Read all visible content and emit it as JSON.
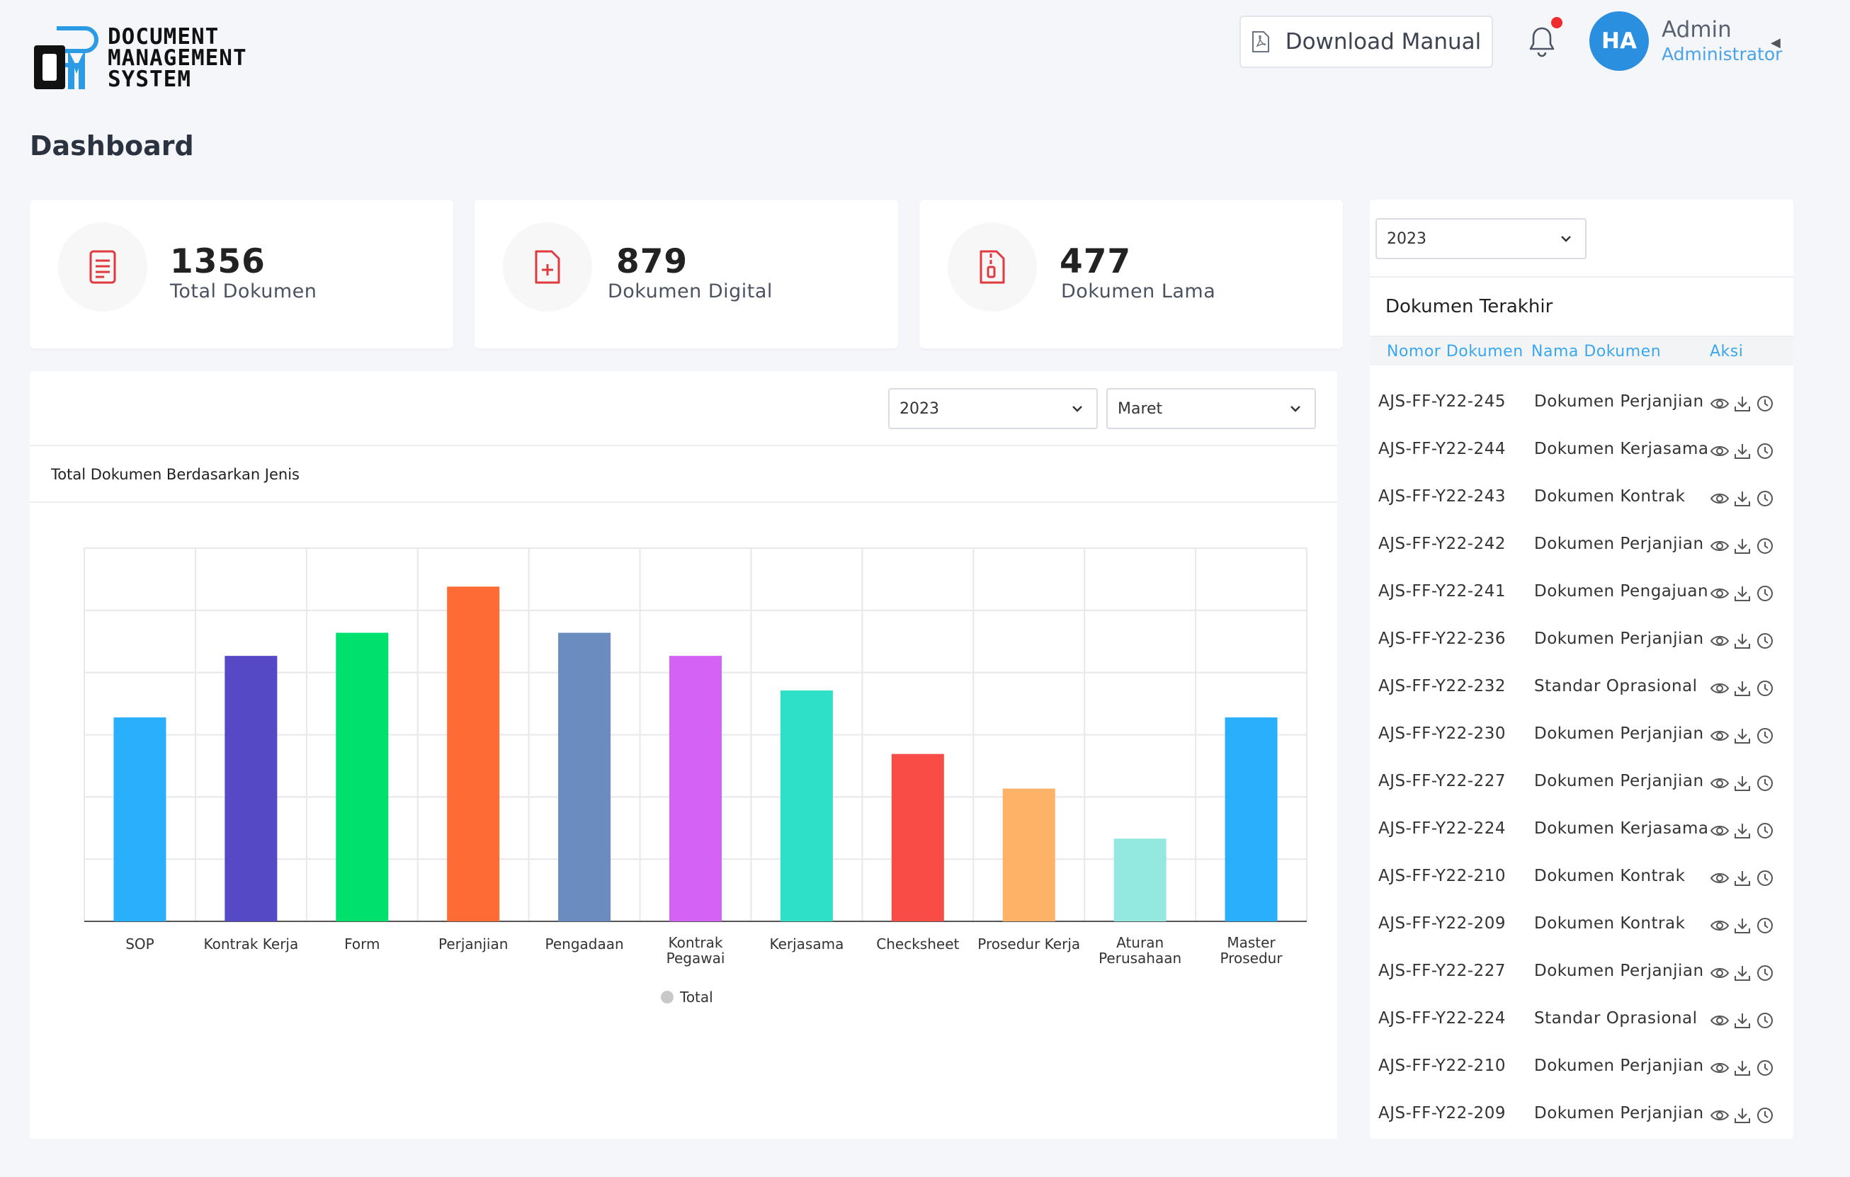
{
  "brand": {
    "mark": "DM",
    "lines": [
      "DOCUMENT",
      "MANAGEMENT",
      "SYSTEM"
    ]
  },
  "header": {
    "download_label": "Download Manual",
    "user_initials": "HA",
    "user_name": "Admin",
    "user_role": "Administrator",
    "notification_unread": true
  },
  "page_title": "Dashboard",
  "stats": [
    {
      "value": "1356",
      "label": "Total Dokumen",
      "icon": "document-lines-icon"
    },
    {
      "value": "879",
      "label": "Dokumen Digital",
      "icon": "document-plus-icon"
    },
    {
      "value": "477",
      "label": "Dokumen Lama",
      "icon": "document-zip-icon"
    }
  ],
  "colors": {
    "accent": "#3ba7ee",
    "icon_red": "#e0393e",
    "avatar": "#2b8fe0"
  },
  "chart_filters": {
    "year": "2023",
    "month": "Maret"
  },
  "chart_data": {
    "type": "bar",
    "title": "Total Dokumen Berdasarkan Jenis",
    "categories": [
      "SOP",
      "Kontrak Kerja",
      "Form",
      "Perjanjian",
      "Pengadaan",
      "Kontrak Pegawai",
      "Kerjasama",
      "Checksheet",
      "Prosedur Kerja",
      "Aturan Perusahaan",
      "Master Prosedur"
    ],
    "series": [
      {
        "name": "Total",
        "values": [
          53,
          69,
          75,
          87,
          75,
          69,
          60,
          43.5,
          34.5,
          21.5,
          53
        ]
      }
    ],
    "bar_colors": [
      "#2aaffc",
      "#5549c6",
      "#00e06c",
      "#ff6b35",
      "#6b8cbf",
      "#d463f5",
      "#2ee0c8",
      "#f94c47",
      "#fdb268",
      "#93e8df",
      "#2aaffc"
    ],
    "ylim": [
      0,
      97
    ],
    "grid": true,
    "legend": "bottom-center",
    "y_tick_labels_visible": false
  },
  "recent": {
    "year": "2023",
    "title": "Dokumen Terakhir",
    "columns": [
      "Nomor Dokumen",
      "Nama Dokumen",
      "Aksi"
    ],
    "rows": [
      {
        "no": "AJS-FF-Y22-245",
        "name": "Dokumen Perjanjian"
      },
      {
        "no": "AJS-FF-Y22-244",
        "name": "Dokumen Kerjasama"
      },
      {
        "no": "AJS-FF-Y22-243",
        "name": "Dokumen Kontrak"
      },
      {
        "no": "AJS-FF-Y22-242",
        "name": "Dokumen Perjanjian"
      },
      {
        "no": "AJS-FF-Y22-241",
        "name": "Dokumen Pengajuan"
      },
      {
        "no": "AJS-FF-Y22-236",
        "name": "Dokumen Perjanjian"
      },
      {
        "no": "AJS-FF-Y22-232",
        "name": "Standar Oprasional"
      },
      {
        "no": "AJS-FF-Y22-230",
        "name": "Dokumen Perjanjian"
      },
      {
        "no": "AJS-FF-Y22-227",
        "name": "Dokumen Perjanjian"
      },
      {
        "no": "AJS-FF-Y22-224",
        "name": "Dokumen Kerjasama"
      },
      {
        "no": "AJS-FF-Y22-210",
        "name": "Dokumen Kontrak"
      },
      {
        "no": "AJS-FF-Y22-209",
        "name": "Dokumen Kontrak"
      },
      {
        "no": "AJS-FF-Y22-227",
        "name": "Dokumen Perjanjian"
      },
      {
        "no": "AJS-FF-Y22-224",
        "name": "Standar Oprasional"
      },
      {
        "no": "AJS-FF-Y22-210",
        "name": "Dokumen Perjanjian"
      },
      {
        "no": "AJS-FF-Y22-209",
        "name": "Dokumen Perjanjian"
      }
    ],
    "row_actions": [
      "eye-icon",
      "download-icon",
      "history-icon"
    ]
  }
}
